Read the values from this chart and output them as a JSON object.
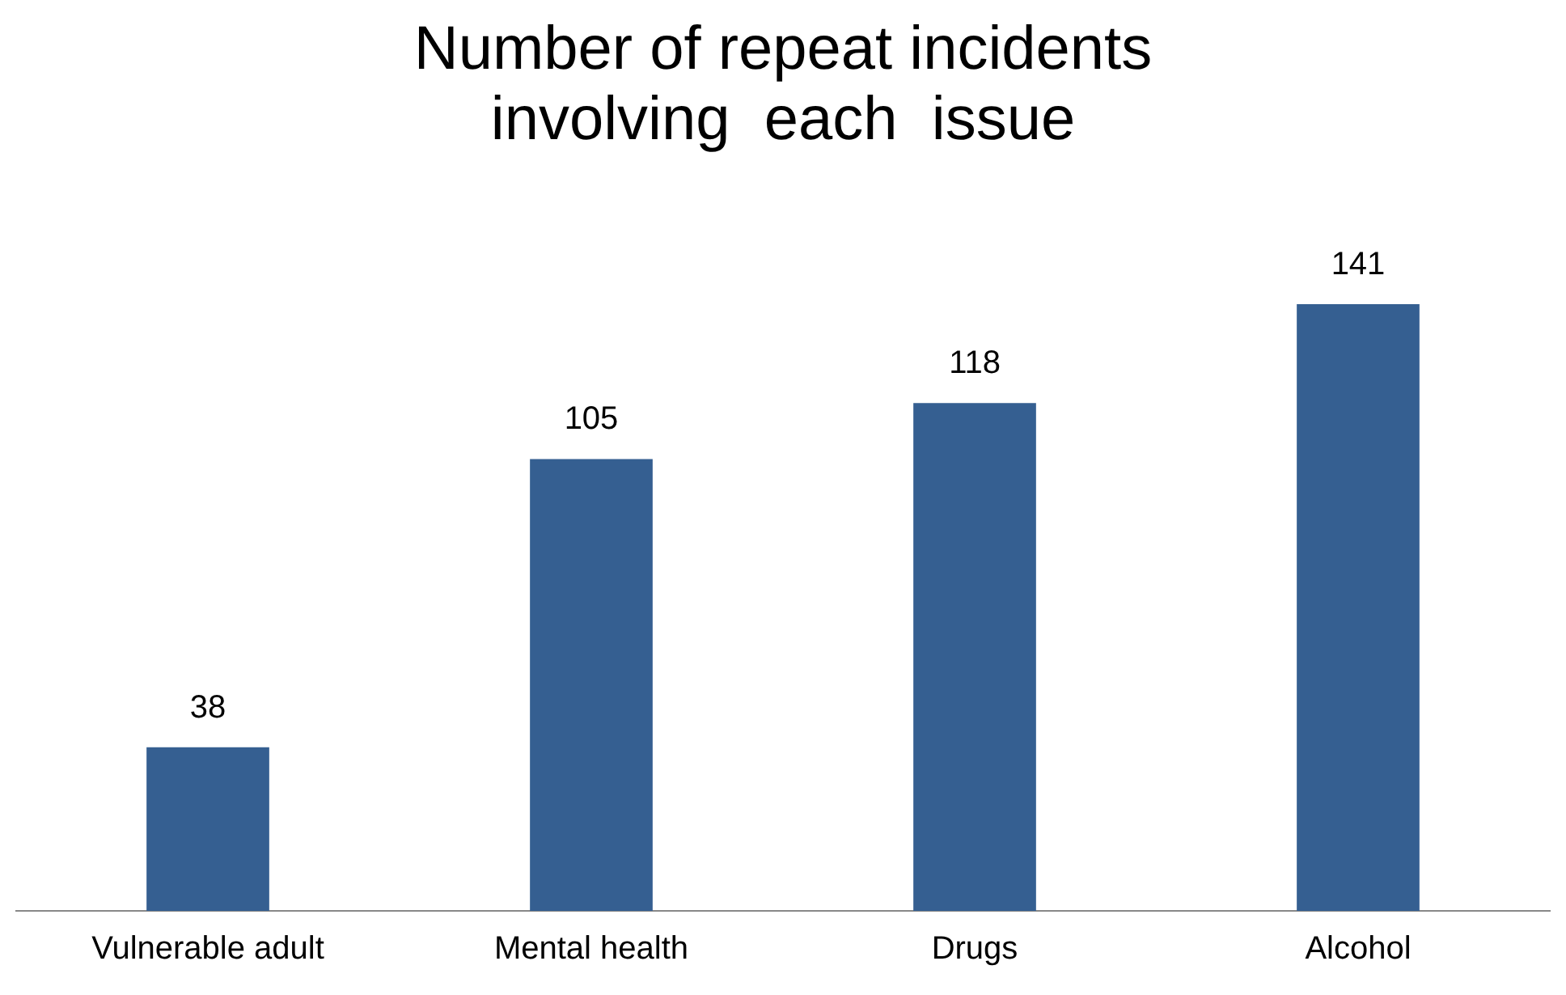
{
  "chart_data": {
    "type": "bar",
    "title": "Number of repeat incidents\ninvolving  each  issue",
    "categories": [
      "Vulnerable adult",
      "Mental health",
      "Drugs",
      "Alcohol"
    ],
    "values": [
      38,
      105,
      118,
      141
    ],
    "color": "#355f91",
    "data_labels": true,
    "grid": false,
    "legend": false
  }
}
